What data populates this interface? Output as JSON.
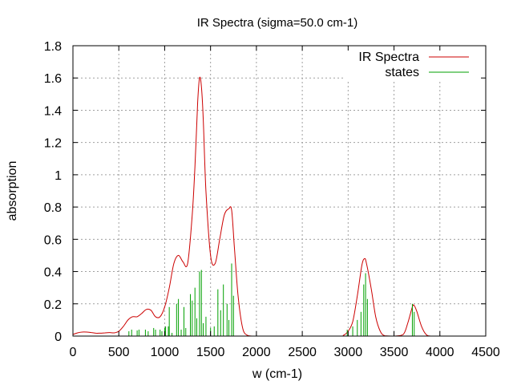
{
  "chart_data": {
    "type": "line",
    "title": "IR Spectra (sigma=50.0 cm-1)",
    "xlabel": "w (cm-1)",
    "ylabel": "absorption",
    "xlim": [
      0,
      4500
    ],
    "ylim": [
      0,
      1.8
    ],
    "xticks": [
      "0",
      "500",
      "1000",
      "1500",
      "2000",
      "2500",
      "3000",
      "3500",
      "4000",
      "4500"
    ],
    "yticks": [
      "0",
      "0.2",
      "0.4",
      "0.6",
      "0.8",
      "1",
      "1.2",
      "1.4",
      "1.6",
      "1.8"
    ],
    "grid": true,
    "legend_position": "top-right",
    "series": [
      {
        "name": "IR Spectra",
        "color": "#cc0000",
        "style": "line",
        "x": [
          0,
          50,
          100,
          150,
          200,
          250,
          300,
          350,
          400,
          450,
          500,
          550,
          600,
          650,
          700,
          750,
          800,
          850,
          900,
          950,
          1000,
          1050,
          1100,
          1150,
          1200,
          1250,
          1300,
          1330,
          1360,
          1380,
          1400,
          1420,
          1450,
          1500,
          1550,
          1600,
          1650,
          1700,
          1730,
          1760,
          1800,
          1850,
          1900,
          1950,
          2000,
          2500,
          2900,
          2950,
          3000,
          3050,
          3100,
          3150,
          3180,
          3200,
          3250,
          3300,
          3350,
          3400,
          3500,
          3600,
          3650,
          3700,
          3720,
          3750,
          3800,
          3850,
          3900,
          4000,
          4500
        ],
        "values": [
          0.01,
          0.02,
          0.025,
          0.025,
          0.022,
          0.018,
          0.018,
          0.02,
          0.022,
          0.02,
          0.03,
          0.06,
          0.1,
          0.12,
          0.12,
          0.14,
          0.165,
          0.16,
          0.12,
          0.12,
          0.18,
          0.3,
          0.45,
          0.5,
          0.46,
          0.45,
          0.75,
          1.05,
          1.45,
          1.6,
          1.55,
          1.35,
          0.9,
          0.5,
          0.45,
          0.6,
          0.75,
          0.79,
          0.78,
          0.55,
          0.25,
          0.05,
          0.005,
          0,
          0,
          0,
          0,
          0.005,
          0.03,
          0.09,
          0.25,
          0.44,
          0.48,
          0.45,
          0.3,
          0.12,
          0.03,
          0.002,
          0,
          0.01,
          0.08,
          0.18,
          0.19,
          0.15,
          0.06,
          0.01,
          0,
          0,
          0
        ]
      },
      {
        "name": "states",
        "color": "#00a000",
        "style": "impulses",
        "x": [
          610,
          640,
          700,
          720,
          790,
          820,
          880,
          900,
          950,
          970,
          1000,
          1010,
          1040,
          1050,
          1080,
          1130,
          1150,
          1180,
          1210,
          1230,
          1280,
          1300,
          1330,
          1350,
          1380,
          1400,
          1420,
          1450,
          1500,
          1540,
          1580,
          1610,
          1640,
          1680,
          1700,
          1730,
          1750,
          2990,
          3050,
          3100,
          3140,
          3170,
          3190,
          3210,
          3700,
          3720
        ],
        "values": [
          0.03,
          0.04,
          0.035,
          0.04,
          0.04,
          0.03,
          0.05,
          0.04,
          0.04,
          0.03,
          0.05,
          0.06,
          0.06,
          0.18,
          0.02,
          0.2,
          0.23,
          0.04,
          0.18,
          0.05,
          0.26,
          0.22,
          0.3,
          0.11,
          0.4,
          0.41,
          0.08,
          0.12,
          0.05,
          0.06,
          0.29,
          0.16,
          0.32,
          0.2,
          0.1,
          0.45,
          0.25,
          0.04,
          0.06,
          0.1,
          0.15,
          0.32,
          0.39,
          0.23,
          0.2,
          0.15
        ]
      }
    ]
  }
}
